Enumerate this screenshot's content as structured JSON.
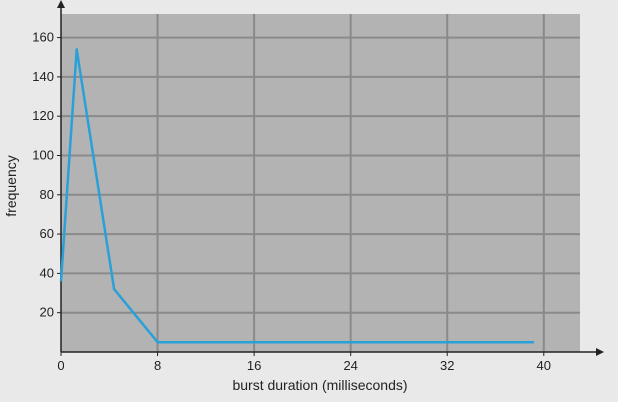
{
  "chart_data": {
    "type": "line",
    "title": "",
    "xlabel": "burst duration (milliseconds)",
    "ylabel": "frequency",
    "xlim": [
      0,
      43
    ],
    "ylim": [
      0,
      172
    ],
    "x_ticks": [
      0,
      8,
      16,
      24,
      32,
      40
    ],
    "y_ticks": [
      20,
      40,
      60,
      80,
      100,
      120,
      140,
      160
    ],
    "grid": true,
    "legend": "none",
    "series": [
      {
        "color": "#2aa0d8",
        "points": [
          [
            0,
            36
          ],
          [
            1.3,
            154
          ],
          [
            4.4,
            32
          ],
          [
            8,
            5
          ],
          [
            39.2,
            5
          ]
        ]
      }
    ],
    "colors": {
      "plot_background": "#b3b3b3",
      "grid": "#8a8a8a",
      "axis": "#222222",
      "line": "#2aa0d8",
      "page_background": "#e9e9e9"
    }
  }
}
